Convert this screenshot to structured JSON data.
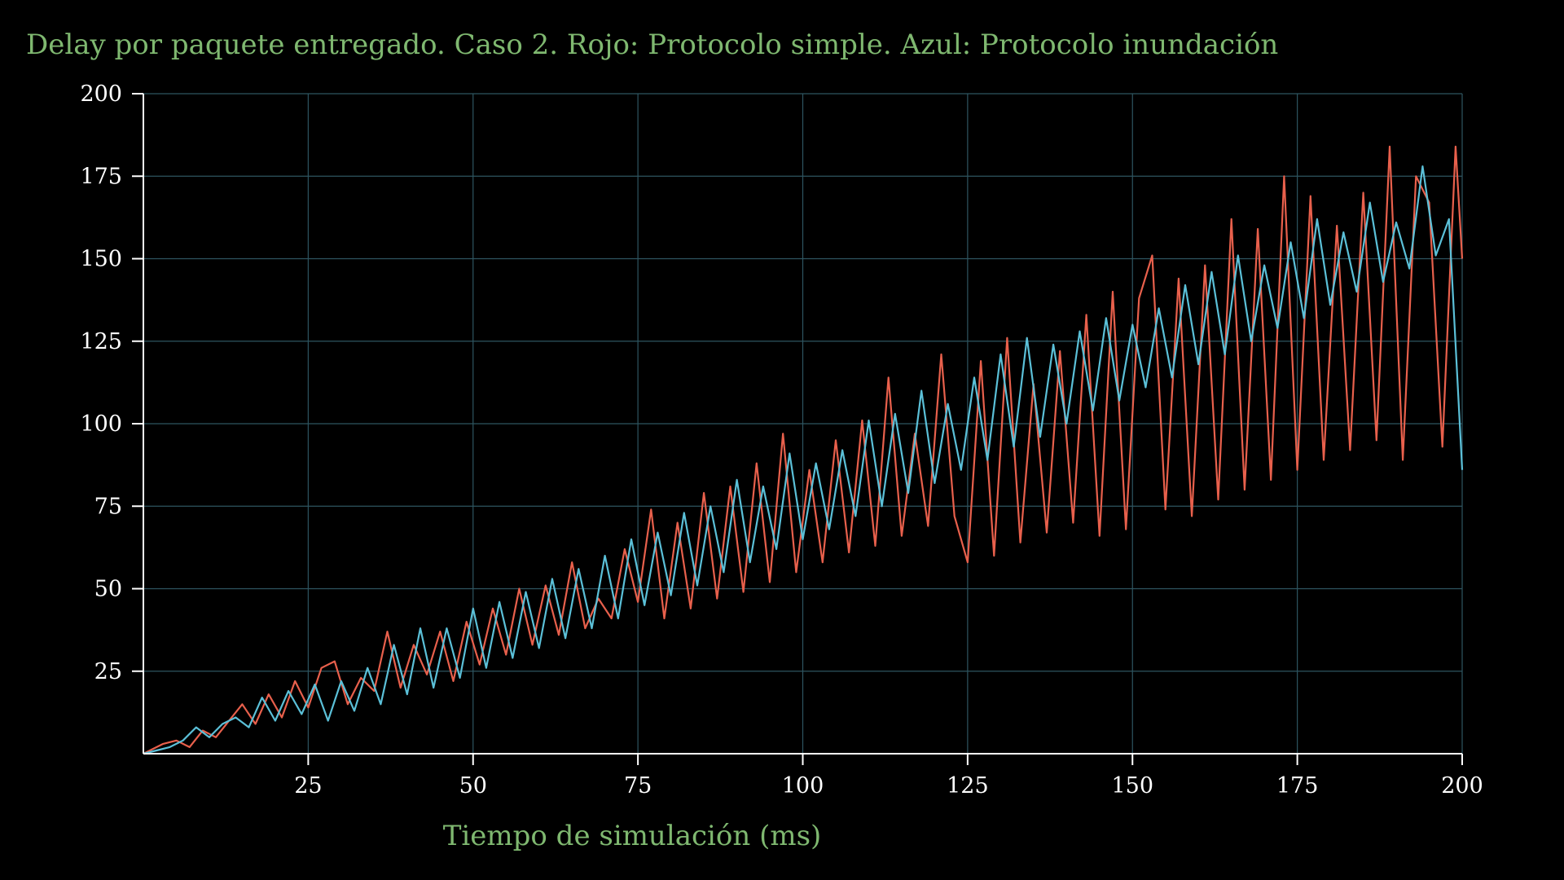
{
  "colors": {
    "background": "#000000",
    "title": "#7fb870",
    "axis": "#ffffff",
    "ticks": "#ffffff",
    "grid": "#2e5560",
    "series_red": "#e8604c",
    "series_blue": "#5bc0d8"
  },
  "chart_data": {
    "type": "line",
    "title": "Delay por paquete entregado. Caso 2. Rojo: Protocolo simple. Azul: Protocolo inundación",
    "xlabel": "Tiempo de simulación (ms)",
    "ylabel": "",
    "xlim": [
      0,
      200
    ],
    "ylim": [
      0,
      200
    ],
    "grid": true,
    "x_ticks": [
      25,
      50,
      75,
      100,
      125,
      150,
      175,
      200
    ],
    "x_tick_labels": [
      "25",
      "50",
      "75",
      "100",
      "125",
      "150",
      "175",
      "200"
    ],
    "y_ticks": [
      25,
      50,
      75,
      100,
      125,
      150,
      175,
      200
    ],
    "y_tick_labels": [
      "25",
      "50",
      "75",
      "100",
      "125",
      "150",
      "175",
      "200"
    ],
    "series": [
      {
        "color": "#e8604c",
        "x": [
          0,
          3,
          5,
          7,
          9,
          11,
          13,
          15,
          17,
          19,
          21,
          23,
          25,
          27,
          29,
          31,
          33,
          35,
          37,
          39,
          41,
          43,
          45,
          47,
          49,
          51,
          53,
          55,
          57,
          59,
          61,
          63,
          65,
          67,
          69,
          71,
          73,
          75,
          77,
          79,
          81,
          83,
          85,
          87,
          89,
          91,
          93,
          95,
          97,
          99,
          101,
          103,
          105,
          107,
          109,
          111,
          113,
          115,
          117,
          119,
          121,
          123,
          125,
          127,
          129,
          131,
          133,
          135,
          137,
          139,
          141,
          143,
          145,
          147,
          149,
          151,
          153,
          155,
          157,
          159,
          161,
          163,
          165,
          167,
          169,
          171,
          173,
          175,
          177,
          179,
          181,
          183,
          185,
          187,
          189,
          191,
          193,
          195,
          197,
          199,
          200
        ],
        "y": [
          0,
          3,
          4,
          2,
          7,
          5,
          10,
          15,
          9,
          18,
          11,
          22,
          14,
          26,
          28,
          15,
          23,
          19,
          37,
          20,
          33,
          24,
          37,
          22,
          40,
          27,
          44,
          30,
          50,
          33,
          51,
          36,
          58,
          38,
          47,
          41,
          62,
          46,
          74,
          41,
          70,
          44,
          79,
          47,
          81,
          49,
          88,
          52,
          97,
          55,
          86,
          58,
          95,
          61,
          101,
          63,
          114,
          66,
          97,
          69,
          121,
          72,
          58,
          119,
          60,
          126,
          64,
          112,
          67,
          122,
          70,
          133,
          66,
          140,
          68,
          138,
          151,
          74,
          144,
          72,
          148,
          77,
          162,
          80,
          159,
          83,
          175,
          86,
          169,
          89,
          160,
          92,
          170,
          95,
          184,
          89,
          175,
          167,
          93,
          184,
          150
        ]
      },
      {
        "color": "#5bc0d8",
        "x": [
          0,
          2,
          4,
          6,
          8,
          10,
          12,
          14,
          16,
          18,
          20,
          22,
          24,
          26,
          28,
          30,
          32,
          34,
          36,
          38,
          40,
          42,
          44,
          46,
          48,
          50,
          52,
          54,
          56,
          58,
          60,
          62,
          64,
          66,
          68,
          70,
          72,
          74,
          76,
          78,
          80,
          82,
          84,
          86,
          88,
          90,
          92,
          94,
          96,
          98,
          100,
          102,
          104,
          106,
          108,
          110,
          112,
          114,
          116,
          118,
          120,
          122,
          124,
          126,
          128,
          130,
          132,
          134,
          136,
          138,
          140,
          142,
          144,
          146,
          148,
          150,
          152,
          154,
          156,
          158,
          160,
          162,
          164,
          166,
          168,
          170,
          172,
          174,
          176,
          178,
          180,
          182,
          184,
          186,
          188,
          190,
          192,
          194,
          196,
          198,
          200
        ],
        "y": [
          0,
          1,
          2,
          4,
          8,
          5,
          9,
          11,
          8,
          17,
          10,
          19,
          12,
          21,
          10,
          22,
          13,
          26,
          15,
          33,
          18,
          38,
          20,
          38,
          23,
          44,
          26,
          46,
          29,
          49,
          32,
          53,
          35,
          56,
          38,
          60,
          41,
          65,
          45,
          67,
          48,
          73,
          51,
          75,
          55,
          83,
          58,
          81,
          62,
          91,
          65,
          88,
          68,
          92,
          72,
          101,
          75,
          103,
          79,
          110,
          82,
          106,
          86,
          114,
          89,
          121,
          93,
          126,
          96,
          124,
          100,
          128,
          104,
          132,
          107,
          130,
          111,
          135,
          114,
          142,
          118,
          146,
          121,
          151,
          125,
          148,
          129,
          155,
          132,
          162,
          136,
          158,
          140,
          167,
          143,
          161,
          147,
          178,
          151,
          162,
          86
        ]
      }
    ]
  }
}
